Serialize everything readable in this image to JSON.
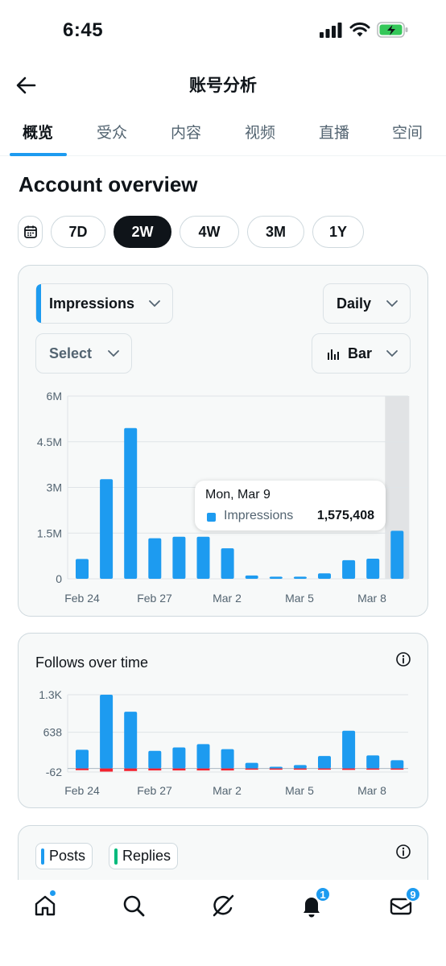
{
  "status_bar": {
    "time": "6:45",
    "icons": [
      "signal-icon",
      "wifi-icon",
      "battery-charging-icon"
    ]
  },
  "header": {
    "title": "账号分析"
  },
  "tabs": [
    {
      "label": "概览",
      "active": true
    },
    {
      "label": "受众",
      "active": false
    },
    {
      "label": "内容",
      "active": false
    },
    {
      "label": "视频",
      "active": false
    },
    {
      "label": "直播",
      "active": false
    },
    {
      "label": "空间",
      "active": false
    }
  ],
  "overview": {
    "title": "Account overview",
    "ranges": [
      "7D",
      "2W",
      "4W",
      "3M",
      "1Y"
    ],
    "selected_range": "2W"
  },
  "impressions_card": {
    "metric_select": "Impressions",
    "interval_select": "Daily",
    "compare_select": "Select",
    "chart_type_select": "Bar",
    "tooltip": {
      "date": "Mon, Mar 9",
      "label": "Impressions",
      "value": "1,575,408"
    }
  },
  "follows_card": {
    "title": "Follows over time"
  },
  "posts_card": {
    "chips": [
      {
        "label": "Posts",
        "color": "#1d9bf0"
      },
      {
        "label": "Replies",
        "color": "#00ba7c"
      }
    ]
  },
  "bottom_nav": {
    "items": [
      "home-icon",
      "search-icon",
      "grok-icon",
      "notifications-icon",
      "messages-icon"
    ],
    "notifications_badge": "1",
    "messages_badge": "9"
  },
  "colors": {
    "accent": "#1d9bf0",
    "negative": "#f4212e",
    "highlight_column": "#e1e3e5"
  },
  "chart_data": [
    {
      "type": "bar",
      "title": "",
      "xlabel": "",
      "ylabel": "",
      "categories": [
        "Feb 24",
        "Feb 25",
        "Feb 26",
        "Feb 27",
        "Feb 28",
        "Mar 1",
        "Mar 2",
        "Mar 3",
        "Mar 4",
        "Mar 5",
        "Mar 6",
        "Mar 7",
        "Mar 8",
        "Mar 9"
      ],
      "x_tick_labels": [
        "Feb 24",
        "Feb 27",
        "Mar 2",
        "Mar 5",
        "Mar 8"
      ],
      "series": [
        {
          "name": "Impressions",
          "values": [
            650000,
            3270000,
            4950000,
            1330000,
            1380000,
            1380000,
            1000000,
            110000,
            70000,
            70000,
            180000,
            610000,
            660000,
            1575408
          ]
        }
      ],
      "ylim": [
        0,
        6000000
      ],
      "y_ticks": [
        {
          "value": 0,
          "label": "0"
        },
        {
          "value": 1500000,
          "label": "1.5M"
        },
        {
          "value": 3000000,
          "label": "3M"
        },
        {
          "value": 4500000,
          "label": "4.5M"
        },
        {
          "value": 6000000,
          "label": "6M"
        }
      ],
      "highlighted_category": "Mar 9",
      "grid": true
    },
    {
      "type": "bar",
      "title": "Follows over time",
      "xlabel": "",
      "ylabel": "",
      "categories": [
        "Feb 24",
        "Feb 25",
        "Feb 26",
        "Feb 27",
        "Feb 28",
        "Mar 1",
        "Mar 2",
        "Mar 3",
        "Mar 4",
        "Mar 5",
        "Mar 6",
        "Mar 7",
        "Mar 8",
        "Mar 9"
      ],
      "x_tick_labels": [
        "Feb 24",
        "Feb 27",
        "Mar 2",
        "Mar 5",
        "Mar 8"
      ],
      "series": [
        {
          "name": "Follows",
          "color": "#1d9bf0",
          "values": [
            330,
            1300,
            1000,
            310,
            370,
            430,
            340,
            100,
            30,
            60,
            220,
            665,
            230,
            145
          ]
        },
        {
          "name": "Unfollows",
          "color": "#f4212e",
          "values": [
            -30,
            -55,
            -45,
            -35,
            -35,
            -35,
            -35,
            -20,
            -10,
            -15,
            -20,
            -25,
            -20,
            -15
          ]
        }
      ],
      "ylim": [
        -62,
        1300
      ],
      "y_ticks": [
        {
          "value": -62,
          "label": "-62"
        },
        {
          "value": 638,
          "label": "638"
        },
        {
          "value": 1300,
          "label": "1.3K"
        }
      ],
      "grid": true
    }
  ]
}
